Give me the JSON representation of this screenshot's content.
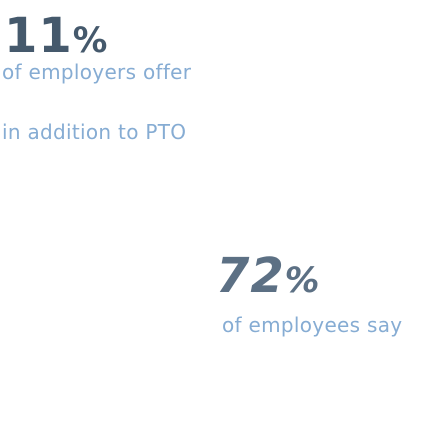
{
  "stats": [
    {
      "number": "11",
      "unit": "%",
      "lines": [
        "of employers offer",
        "in addition to PTO"
      ]
    },
    {
      "number": "72",
      "unit": "%",
      "lines": [
        "of employees say"
      ]
    }
  ]
}
